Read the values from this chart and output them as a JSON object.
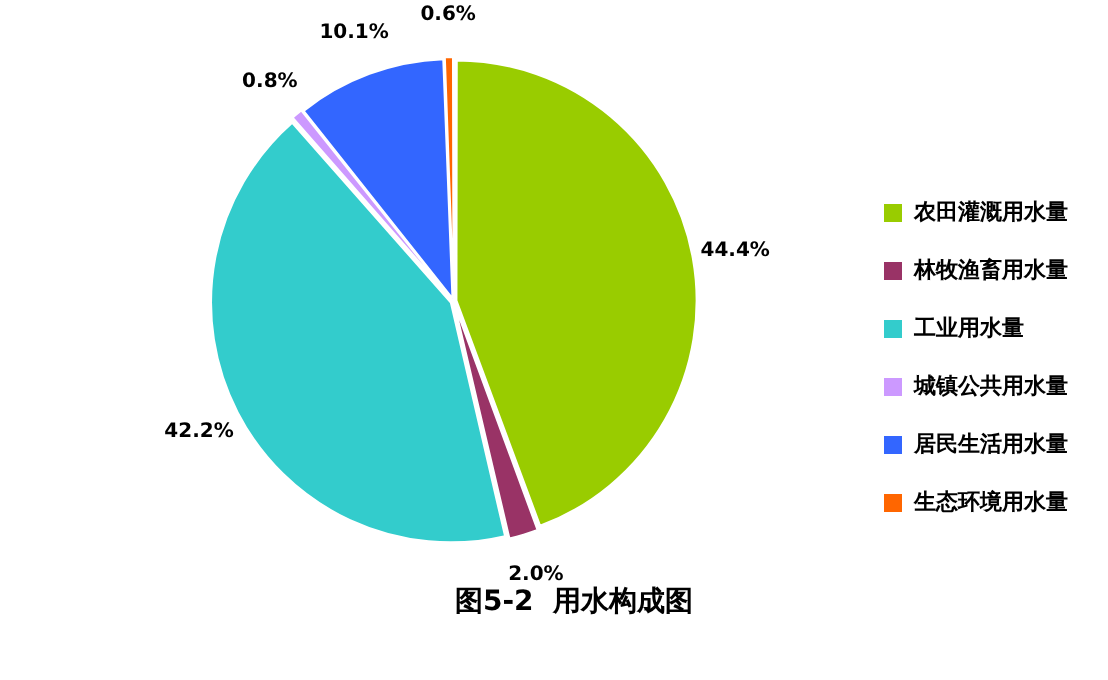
{
  "chart_data": {
    "type": "pie",
    "title": "图5-2  用水构成图",
    "categories": [
      "农田灌溉用水量",
      "林牧渔畜用水量",
      "工业用水量",
      "城镇公共用水量",
      "居民生活用水量",
      "生态环境用水量"
    ],
    "values": [
      44.4,
      2.0,
      42.2,
      0.8,
      10.1,
      0.6
    ],
    "colors": [
      "#99cc00",
      "#993366",
      "#33cccc",
      "#cc99ff",
      "#3366ff",
      "#ff6600"
    ],
    "value_labels": [
      "44.4%",
      "2.0%",
      "42.2%",
      "0.8%",
      "10.1%",
      "0.6%"
    ],
    "legend": "right"
  }
}
